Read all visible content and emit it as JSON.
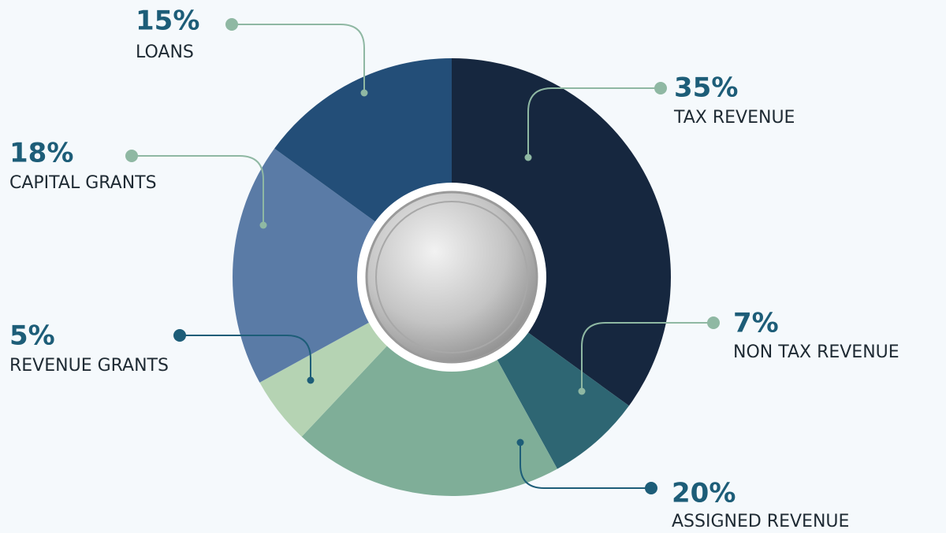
{
  "chart_data": {
    "type": "pie",
    "categories": [
      "TAX REVENUE",
      "NON TAX REVENUE",
      "ASSIGNED REVENUE",
      "REVENUE GRANTS",
      "CAPITAL GRANTS",
      "LOANS"
    ],
    "values": [
      35,
      7,
      20,
      5,
      18,
      15
    ],
    "value_labels": [
      "35%",
      "7%",
      "20%",
      "5%",
      "18%",
      "15%"
    ],
    "colors": [
      "#16273f",
      "#2e6673",
      "#7fae98",
      "#b5d3b3",
      "#5a7ba6",
      "#234e78"
    ]
  }
}
